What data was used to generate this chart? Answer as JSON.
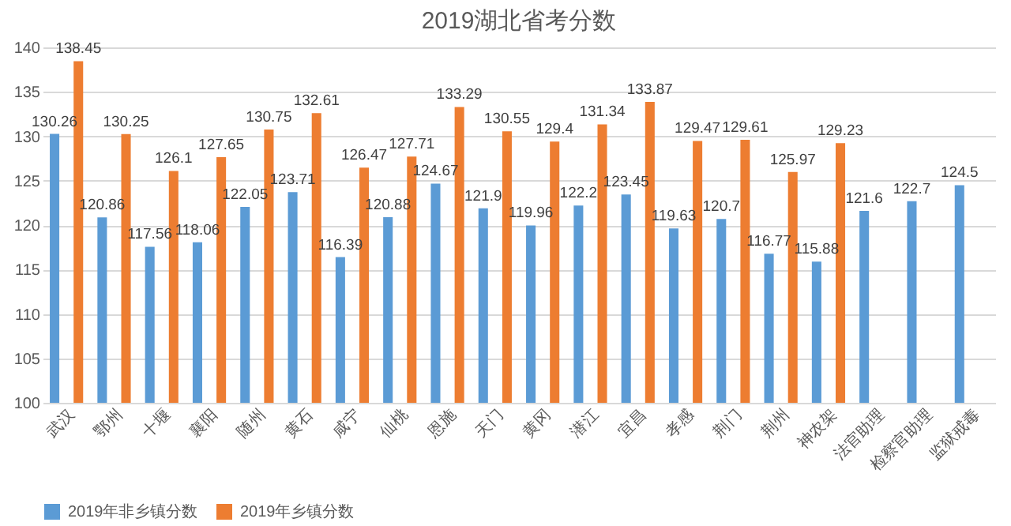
{
  "chart_data": {
    "type": "bar",
    "title": "2019湖北省考分数",
    "categories": [
      "武汉",
      "鄂州",
      "十堰",
      "襄阳",
      "随州",
      "黄石",
      "咸宁",
      "仙桃",
      "恩施",
      "天门",
      "黄冈",
      "潜江",
      "宜昌",
      "孝感",
      "荆门",
      "荆州",
      "神农架",
      "法官助理",
      "检察官助理",
      "监狱戒毒"
    ],
    "series": [
      {
        "name": "2019年非乡镇分数",
        "color": "#5b9bd5",
        "values": [
          130.26,
          120.86,
          117.56,
          118.06,
          122.05,
          123.71,
          116.39,
          120.88,
          124.67,
          121.9,
          119.96,
          122.2,
          123.45,
          119.63,
          120.7,
          116.77,
          115.88,
          121.6,
          122.7,
          124.5
        ]
      },
      {
        "name": "2019年乡镇分数",
        "color": "#ed7d31",
        "values": [
          138.45,
          130.25,
          126.1,
          127.65,
          130.75,
          132.61,
          126.47,
          127.71,
          133.29,
          130.55,
          129.4,
          131.34,
          133.87,
          129.47,
          129.61,
          125.97,
          129.23,
          null,
          null,
          null
        ]
      }
    ],
    "ylim": [
      100,
      140
    ],
    "yticks": [
      100,
      105,
      110,
      115,
      120,
      125,
      130,
      135,
      140
    ],
    "grid": "y",
    "legend": "bottom",
    "data_labels": true
  }
}
